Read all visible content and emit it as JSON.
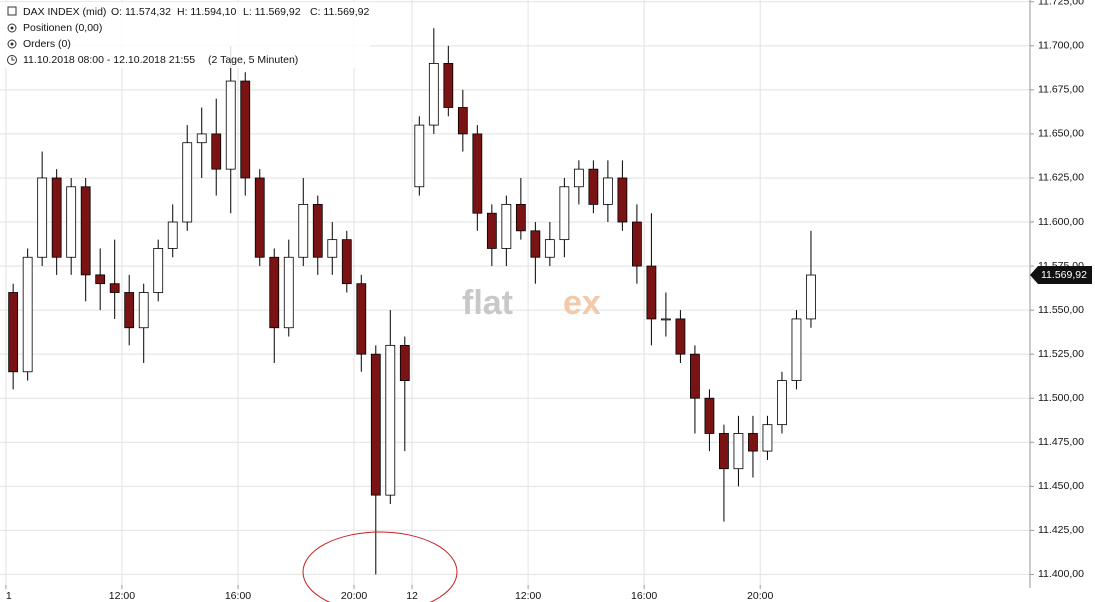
{
  "header": {
    "instrument": "DAX INDEX (mid)",
    "quote": [
      "O: 11.574,32",
      "H: 11.594,10",
      "L: 11.569,92",
      "C: 11.569,92"
    ],
    "positions": "Positionen (0,00)",
    "orders": "Orders (0)",
    "period": "11.10.2018 08:00 - 12.10.2018 21:55",
    "interval": "(2 Tage, 5 Minuten)",
    "watermark": [
      "flat",
      "ex"
    ]
  },
  "chart_data": {
    "type": "candlestick",
    "x": [
      0,
      1,
      2,
      3,
      4,
      5,
      6,
      7,
      8,
      9,
      10,
      11,
      12,
      13,
      14,
      15,
      16,
      17,
      18,
      19,
      20,
      21,
      22,
      23,
      24,
      25,
      26,
      27,
      28,
      29,
      30,
      31,
      32,
      33,
      34,
      35,
      36,
      37,
      38,
      39,
      40,
      41,
      42,
      43,
      44,
      45,
      46,
      47,
      48,
      49,
      50,
      51,
      52,
      53,
      54,
      55
    ],
    "open": [
      11560,
      11515,
      11580,
      11625,
      11580,
      11620,
      11570,
      11565,
      11560,
      11540,
      11560,
      11585,
      11600,
      11645,
      11650,
      11630,
      11680,
      11625,
      11580,
      11540,
      11580,
      11610,
      11580,
      11590,
      11565,
      11525,
      11445,
      11530,
      11620,
      11655,
      11690,
      11665,
      11650,
      11605,
      11585,
      11610,
      11595,
      11580,
      11590,
      11620,
      11630,
      11610,
      11625,
      11600,
      11575,
      11545,
      11545,
      11525,
      11500,
      11480,
      11460,
      11480,
      11470,
      11485,
      11510,
      11545
    ],
    "high": [
      11565,
      11585,
      11640,
      11630,
      11625,
      11625,
      11585,
      11590,
      11570,
      11565,
      11590,
      11610,
      11655,
      11665,
      11670,
      11700,
      11685,
      11630,
      11585,
      11590,
      11625,
      11615,
      11600,
      11595,
      11570,
      11530,
      11550,
      11535,
      11660,
      11710,
      11700,
      11675,
      11655,
      11610,
      11615,
      11625,
      11600,
      11600,
      11625,
      11635,
      11635,
      11635,
      11635,
      11610,
      11605,
      11560,
      11550,
      11530,
      11505,
      11485,
      11490,
      11490,
      11490,
      11515,
      11550,
      11595
    ],
    "low": [
      11505,
      11510,
      11575,
      11570,
      11570,
      11555,
      11550,
      11545,
      11530,
      11520,
      11555,
      11580,
      11595,
      11625,
      11615,
      11605,
      11615,
      11575,
      11520,
      11535,
      11575,
      11570,
      11570,
      11560,
      11515,
      11400,
      11440,
      11470,
      11615,
      11650,
      11660,
      11640,
      11595,
      11575,
      11575,
      11590,
      11565,
      11575,
      11580,
      11610,
      11605,
      11600,
      11595,
      11565,
      11530,
      11535,
      11520,
      11480,
      11470,
      11430,
      11450,
      11455,
      11465,
      11480,
      11505,
      11540
    ],
    "close": [
      11515,
      11580,
      11625,
      11580,
      11620,
      11570,
      11565,
      11560,
      11540,
      11560,
      11585,
      11600,
      11645,
      11650,
      11630,
      11680,
      11625,
      11580,
      11540,
      11580,
      11610,
      11580,
      11590,
      11565,
      11525,
      11445,
      11530,
      11510,
      11655,
      11690,
      11665,
      11650,
      11605,
      11585,
      11610,
      11595,
      11580,
      11590,
      11620,
      11630,
      11610,
      11625,
      11600,
      11575,
      11545,
      11545,
      11525,
      11500,
      11480,
      11460,
      11480,
      11470,
      11485,
      11510,
      11545,
      11569.92
    ],
    "up_color": "#ffffff",
    "down_color": "#7a1414",
    "wick_color": "#000000",
    "xlim": [
      -0.2,
      70.6
    ],
    "xticks": [
      {
        "value": 0,
        "label": "1"
      },
      {
        "value": 8,
        "label": "12:00"
      },
      {
        "value": 16,
        "label": "16:00"
      },
      {
        "value": 24,
        "label": "20:00"
      },
      {
        "value": 28,
        "label": "12"
      },
      {
        "value": 36,
        "label": "12:00"
      },
      {
        "value": 44,
        "label": "16:00"
      },
      {
        "value": 52,
        "label": "20:00"
      }
    ],
    "ylim": [
      11394,
      11726
    ],
    "yticks": [
      {
        "value": 11400,
        "label": "11.400,00"
      },
      {
        "value": 11425,
        "label": "11.425,00"
      },
      {
        "value": 11450,
        "label": "11.450,00"
      },
      {
        "value": 11475,
        "label": "11.475,00"
      },
      {
        "value": 11500,
        "label": "11.500,00"
      },
      {
        "value": 11525,
        "label": "11.525,00"
      },
      {
        "value": 11550,
        "label": "11.550,00"
      },
      {
        "value": 11575,
        "label": "11.575,00"
      },
      {
        "value": 11600,
        "label": "11.600,00"
      },
      {
        "value": 11625,
        "label": "11.625,00"
      },
      {
        "value": 11650,
        "label": "11.650,00"
      },
      {
        "value": 11675,
        "label": "11.675,00"
      },
      {
        "value": 11700,
        "label": "11.700,00"
      },
      {
        "value": 11725,
        "label": "11.725,00"
      }
    ],
    "grid": true,
    "last_price": {
      "value": 11569.92,
      "label": "11.569,92"
    }
  }
}
